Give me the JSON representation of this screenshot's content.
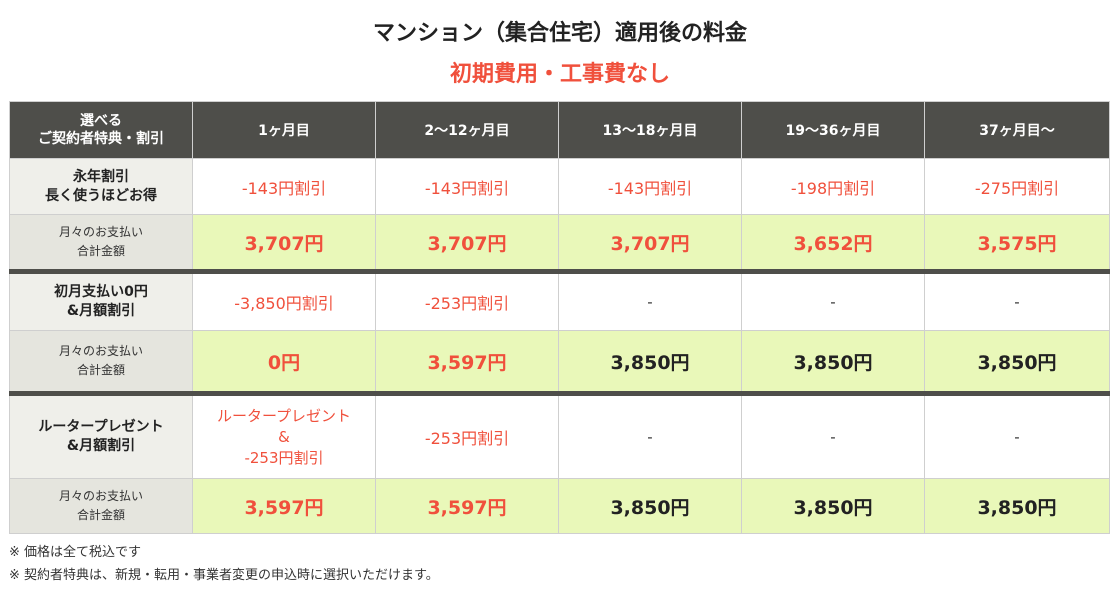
{
  "title": "マンション（集合住宅）適用後の料金",
  "subtitle": "初期費用・工事費なし",
  "header": {
    "corner_line1": "選べる",
    "corner_line2": "ご契約者特典・割引",
    "periods": [
      "1ヶ月目",
      "2〜12ヶ月目",
      "13〜18ヶ月目",
      "19〜36ヶ月目",
      "37ヶ月目〜"
    ]
  },
  "groups": [
    {
      "label_line1": "永年割引",
      "label_line2": "長く使うほどお得",
      "discounts": [
        [
          "-143円割引"
        ],
        [
          "-143円割引"
        ],
        [
          "-143円割引"
        ],
        [
          "-198円割引"
        ],
        [
          "-275円割引"
        ]
      ],
      "total_label_line1": "月々のお支払い",
      "total_label_line2": "合計金額",
      "totals": [
        "3,707円",
        "3,707円",
        "3,707円",
        "3,652円",
        "3,575円"
      ]
    },
    {
      "label_line1": "初月支払い0円",
      "label_line2": "&月額割引",
      "discounts": [
        [
          "-3,850円割引"
        ],
        [
          "-253円割引"
        ],
        [
          "-"
        ],
        [
          "-"
        ],
        [
          "-"
        ]
      ],
      "total_label_line1": "月々のお支払い",
      "total_label_line2": "合計金額",
      "totals": [
        "0円",
        "3,597円",
        "3,850円",
        "3,850円",
        "3,850円"
      ]
    },
    {
      "label_line1": "ルータープレゼント",
      "label_line2": "&月額割引",
      "discounts": [
        [
          "ルータープレゼント",
          "&",
          "-253円割引"
        ],
        [
          "-253円割引"
        ],
        [
          "-"
        ],
        [
          "-"
        ],
        [
          "-"
        ]
      ],
      "total_label_line1": "月々のお支払い",
      "total_label_line2": "合計金額",
      "totals": [
        "3,597円",
        "3,597円",
        "3,850円",
        "3,850円",
        "3,850円"
      ]
    }
  ],
  "notes": [
    "※ 価格は全て税込です",
    "※ 契約者特典は、新規・転用・事業者変更の申込時に選択いただけます。"
  ]
}
